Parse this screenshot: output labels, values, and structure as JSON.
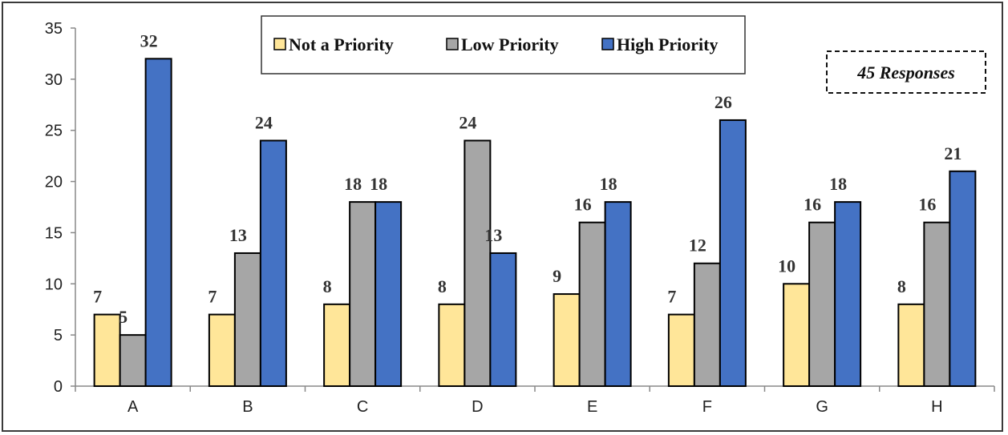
{
  "chart_data": {
    "type": "bar",
    "categories": [
      "A",
      "B",
      "C",
      "D",
      "E",
      "F",
      "G",
      "H"
    ],
    "series": [
      {
        "name": "Not a Priority",
        "values": [
          7,
          7,
          8,
          8,
          9,
          7,
          10,
          8
        ],
        "color": "#ffe699"
      },
      {
        "name": "Low Priority",
        "values": [
          5,
          13,
          18,
          24,
          16,
          12,
          16,
          16
        ],
        "color": "#a6a6a6"
      },
      {
        "name": "High Priority",
        "values": [
          32,
          24,
          18,
          13,
          18,
          26,
          18,
          21
        ],
        "color": "#4472c4"
      }
    ],
    "ylim": [
      0,
      35
    ],
    "yticks": [
      0,
      5,
      10,
      15,
      20,
      25,
      30,
      35
    ],
    "title": "",
    "xlabel": "",
    "ylabel": "",
    "grid": false,
    "legend_position": "top-center",
    "annotation": "45 Responses"
  }
}
